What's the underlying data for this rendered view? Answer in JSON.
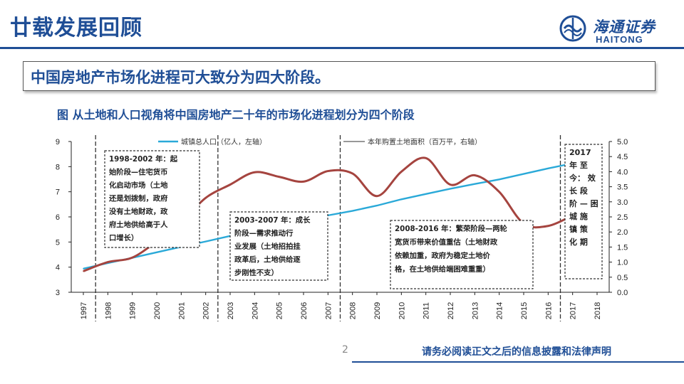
{
  "slide": {
    "title": "廿载发展回顾",
    "headline": "中国房地产市场化进程可大致分为四大阶段。",
    "figure_title": "图 从土地和人口视角将中国房地产二十年的市场化进程划分为四个阶段",
    "page_number": "2",
    "disclaimer": "请务必阅读正文之后的信息披露和法律声明"
  },
  "logo": {
    "cn": "海通证券",
    "en": "HAITONG",
    "icon": "haitong-emblem-icon"
  },
  "colors": {
    "brand": "#1f4e96",
    "population": "#2aa9d8",
    "land": "#a5443f"
  },
  "annotations": {
    "a1": [
      "1998-2002 年：起",
      "始阶段—住宅货币",
      "化启动市场（土地",
      "还是划拨制，政府",
      "没有土地财政，政",
      "府土地供给高于人",
      "口增长）"
    ],
    "a2": [
      "2003-2007 年：成长",
      "阶段—需求推动行",
      "业发展（土地招拍挂",
      "政革后，土地供给逐",
      "步刚性不支）"
    ],
    "a3": [
      "2008-2016 年：繁荣阶段—两轮",
      "宽货币带来价值重估（土地财政",
      "依赖加重，政府为稳定土地价",
      "格，在土地供给端困难重重）"
    ],
    "a4": [
      "2017",
      "年 至",
      "今： 效",
      "长 段",
      "阶 — 困",
      "城 施",
      "镇 策",
      "化 期"
    ]
  },
  "chart_data": {
    "type": "line",
    "x": [
      1997,
      1998,
      1999,
      2000,
      2001,
      2002,
      2003,
      2004,
      2005,
      2006,
      2007,
      2008,
      2009,
      2010,
      2011,
      2012,
      2013,
      2014,
      2015,
      2016,
      2017,
      2018
    ],
    "tick_labels": [
      "1997",
      "1998",
      "1999",
      "2000",
      "2001",
      "2002",
      "2003",
      "2004",
      "2005",
      "2006",
      "2007",
      "2008",
      "2009",
      "2010",
      "2011",
      "2012",
      "2013",
      "2014",
      "2015",
      "2016",
      "2017",
      "2018"
    ],
    "series": [
      {
        "name": "城镇总人口（亿人，左轴）",
        "axis": "left",
        "x": [
          1997,
          1998,
          1999,
          2000,
          2001,
          2002,
          2003,
          2004,
          2005,
          2006,
          2007,
          2008,
          2009,
          2010,
          2011,
          2012,
          2013,
          2014,
          2015,
          2016,
          2017
        ],
        "values": [
          3.94,
          4.16,
          4.37,
          4.59,
          4.81,
          5.02,
          5.24,
          5.43,
          5.62,
          5.83,
          6.06,
          6.24,
          6.45,
          6.7,
          6.91,
          7.12,
          7.31,
          7.49,
          7.71,
          7.93,
          8.13
        ]
      },
      {
        "name": "本年购置土地面积（百万平，右轴）",
        "axis": "right",
        "x": [
          1997,
          1998,
          1999,
          2000,
          2001,
          2002,
          2003,
          2004,
          2005,
          2006,
          2007,
          2008,
          2009,
          2010,
          2011,
          2012,
          2013,
          2014,
          2015,
          2016,
          2017
        ],
        "values": [
          0.7,
          1.0,
          1.15,
          1.69,
          2.33,
          3.13,
          3.57,
          3.98,
          3.83,
          3.67,
          4.02,
          3.94,
          3.19,
          4.0,
          4.45,
          3.57,
          3.88,
          3.33,
          2.28,
          2.2,
          2.55
        ]
      }
    ],
    "y_left": {
      "ylim": [
        3,
        9
      ],
      "ticks": [
        "3",
        "4",
        "5",
        "6",
        "7",
        "8",
        "9"
      ]
    },
    "y_right": {
      "ylim": [
        0,
        5
      ],
      "ticks": [
        "0.0",
        "0.5",
        "1.0",
        "1.5",
        "2.0",
        "2.5",
        "3.0",
        "3.5",
        "4.0",
        "4.5",
        "5.0"
      ]
    },
    "phase_dividers": [
      1997.5,
      2002.5,
      2007.5,
      2016.5
    ],
    "grid": false,
    "legend_position": "top"
  }
}
